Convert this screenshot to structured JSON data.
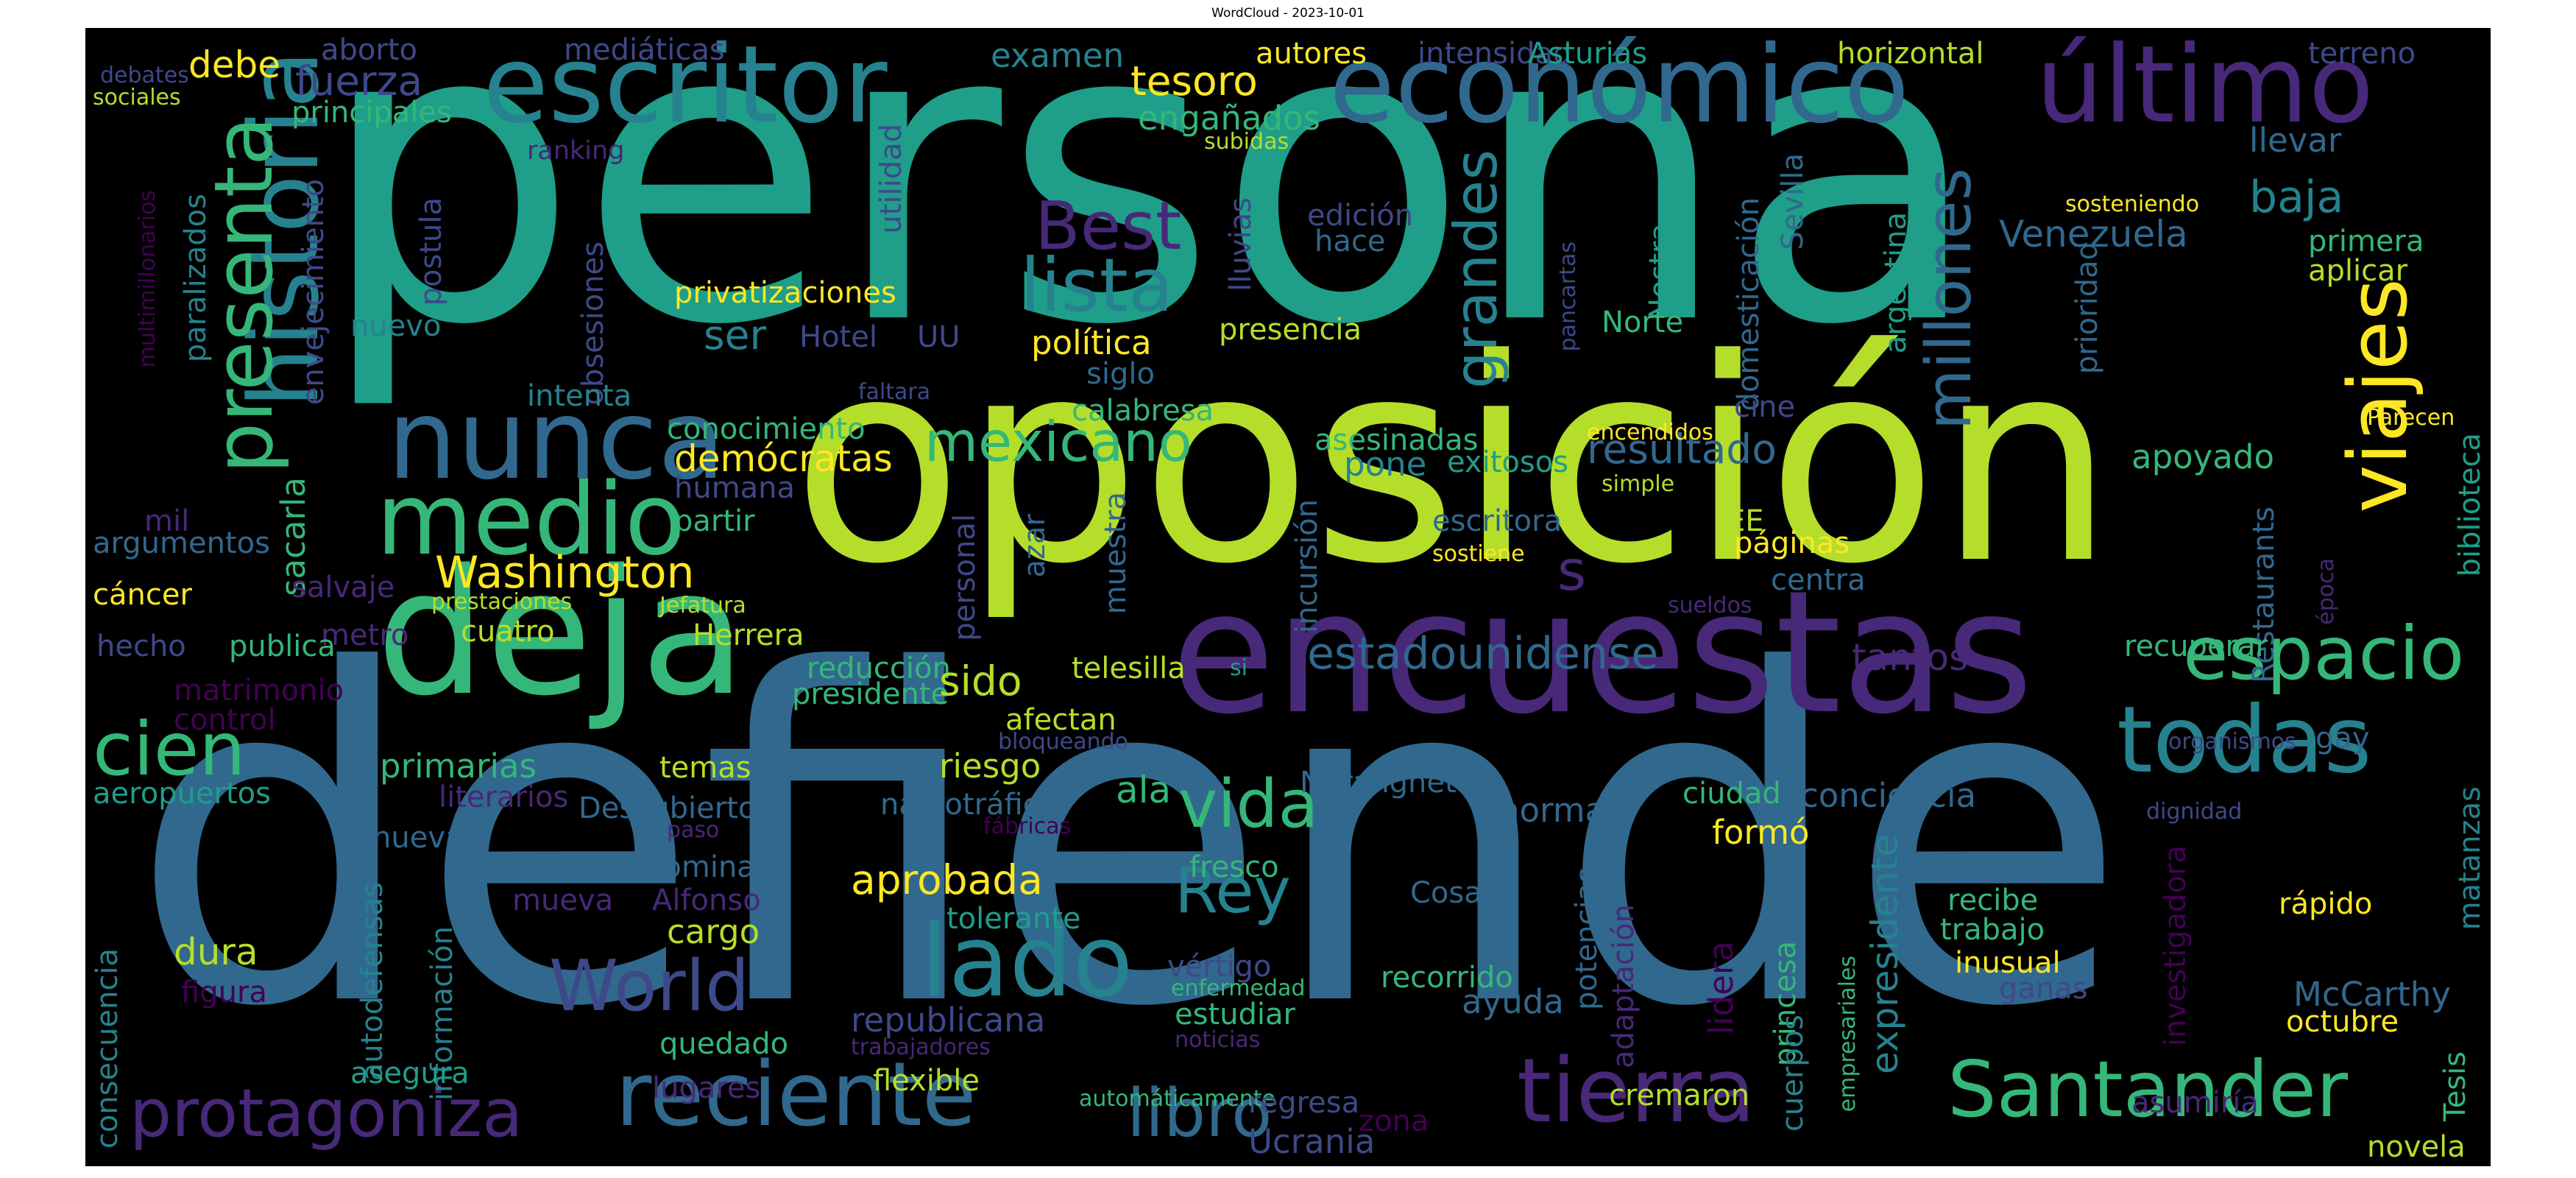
{
  "title": "WordCloud - 2023-10-01",
  "colors": {
    "background": "#000000",
    "palette": [
      "#440154",
      "#482878",
      "#3e4989",
      "#31688e",
      "#26828e",
      "#1f9e89",
      "#35b779",
      "#6ece58",
      "#b5de2b",
      "#fde725"
    ]
  },
  "words": [
    "persona",
    "defiende",
    "oposición",
    "encuestas",
    "deja",
    "historia",
    "escritor",
    "económico",
    "último",
    "nunca",
    "medio",
    "lado",
    "todas",
    "cien",
    "presenta",
    "viajes",
    "espacio",
    "Santander",
    "tierra",
    "reciente",
    "protagoniza",
    "libro",
    "World",
    "Rey",
    "vida",
    "mexicano",
    "lista",
    "millones",
    "grandes",
    "estadounidense",
    "Washington",
    "Best",
    "fuerza",
    "tesoro",
    "examen",
    "s",
    "resultado",
    "baja",
    "Venezuela",
    "llevar",
    "debe",
    "aborto",
    "mediáticas",
    "autores",
    "intensidad",
    "Asturias",
    "horizontal",
    "terreno",
    "debates",
    "sociales",
    "principales",
    "engañados",
    "subidas",
    "ranking",
    "edición",
    "hace",
    "utilidad",
    "lluvias",
    "domesticación",
    "Sevilla",
    "primera",
    "aplicar",
    "Nostra",
    "argentina",
    "pancartas",
    "sosteniendo",
    "prioridad",
    "Norte",
    "postula",
    "envejecimiento",
    "paralizados",
    "nuevo",
    "obsesiones",
    "privatizaciones",
    "ser",
    "Hotel",
    "UU",
    "política",
    "presencia",
    "siglo",
    "faltara",
    "intenta",
    "conocimiento",
    "calabresa",
    "asesinadas",
    "encendidos",
    "cine",
    "Parecen",
    "biblioteca",
    "demócratas",
    "pone",
    "exitosos",
    "apoyado",
    "simple",
    "sacarla",
    "mil",
    "argumentos",
    "humana",
    "partir",
    "personal",
    "azar",
    "muestra",
    "incursión",
    "escritora",
    "EE",
    "páginas",
    "sostiene",
    "centra",
    "Restaurants",
    "época",
    "salvaje",
    "cáncer",
    "prestaciones",
    "Jefatura",
    "cuatro",
    "metro",
    "hecho",
    "publica",
    "Herrera",
    "reducción",
    "telesilla",
    "si",
    "sueldos",
    "tantos",
    "recuperar",
    "matrimonio",
    "control",
    "presidente",
    "sido",
    "afectan",
    "bloqueando",
    "primarias",
    "temas",
    "riesgo",
    "organismos",
    "gay",
    "aeropuertos",
    "literarios",
    "Descubiertos",
    "paso",
    "narcotráfico",
    "fábricas",
    "ala",
    "Ndrangheta",
    "norma",
    "ciudad",
    "conciencia",
    "dignidad",
    "matanzas",
    "nueva",
    "autodefensas",
    "dominará",
    "aprobada",
    "fresco",
    "potencias",
    "formó",
    "expresidente",
    "investigadora",
    "consecuencia",
    "información",
    "mueva",
    "Alfonso",
    "cargo",
    "tolerante",
    "Cosa",
    "adaptación",
    "recibe",
    "trabajo",
    "rápido",
    "dura",
    "vértigo",
    "inusual",
    "lidera",
    "princesa",
    "empresariales",
    "ganas",
    "figura",
    "quedado",
    "estudiar",
    "enfermedad",
    "recorrido",
    "ayuda",
    "cuerpos",
    "McCarthy",
    "octubre",
    "Tesis",
    "asegura",
    "republicana",
    "trabajadores",
    "noticias",
    "lugares",
    "flexible",
    "automáticamente",
    "regresa",
    "zona",
    "cremaron",
    "Ucrania",
    "asumiría",
    "novela",
    "multimillonarios"
  ]
}
